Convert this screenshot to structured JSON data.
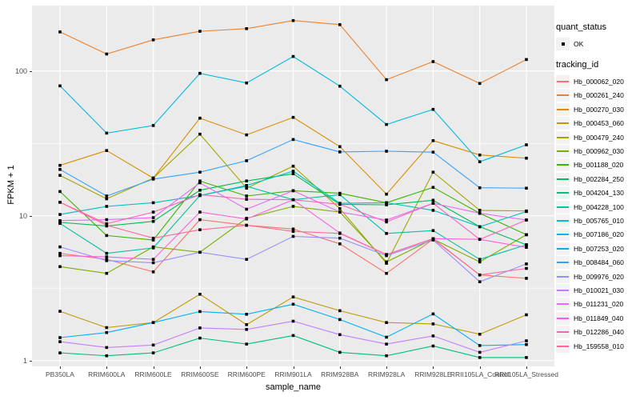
{
  "chart_data": {
    "type": "line",
    "title": "",
    "xlabel": "sample_name",
    "ylabel": "FPKM + 1",
    "y_scale": "log10",
    "ylim": [
      1,
      283
    ],
    "y_ticks": [
      1,
      10,
      100
    ],
    "y_minor_gridlines": [
      3.162,
      31.62
    ],
    "grid": "white gridlines on gray panel",
    "legend_position": "right",
    "point_marker": "small black square",
    "categories": [
      "PB350LA",
      "RRIM600LA",
      "RRIM600LE",
      "RRIM600SE",
      "RRIM600PE",
      "RRIM901LA",
      "RRIM928BA",
      "RRIM928LA",
      "RRIM928LE",
      "RRII105LA_Control",
      "RRII105LA_Stressed"
    ],
    "series": [
      {
        "name": "Hb_000062_020",
        "color": "#F8766D",
        "values": [
          5.5,
          5.0,
          4.1,
          9.4,
          8.6,
          8.1,
          6.4,
          4.0,
          6.9,
          3.9,
          3.7
        ]
      },
      {
        "name": "Hb_000261_240",
        "color": "#EA8331",
        "values": [
          186,
          131,
          164,
          188,
          196,
          223,
          209,
          87,
          116,
          82,
          120
        ]
      },
      {
        "name": "Hb_000270_030",
        "color": "#D89000",
        "values": [
          22.3,
          28.2,
          18.2,
          47.2,
          36.2,
          47.8,
          30.0,
          14.1,
          33.0,
          26.3,
          25.0
        ]
      },
      {
        "name": "Hb_000453_060",
        "color": "#C09B00",
        "values": [
          2.19,
          1.69,
          1.83,
          2.87,
          1.77,
          2.75,
          2.21,
          1.83,
          1.79,
          1.52,
          2.07
        ]
      },
      {
        "name": "Hb_000479_240",
        "color": "#A3A500",
        "values": [
          19.0,
          13.1,
          18.2,
          36.6,
          15.5,
          22.0,
          11.2,
          4.7,
          20.0,
          10.9,
          10.8
        ]
      },
      {
        "name": "Hb_000962_030",
        "color": "#7CAE00",
        "values": [
          4.45,
          4.0,
          6.1,
          5.6,
          9.6,
          11.6,
          10.6,
          4.8,
          6.9,
          4.8,
          7.4
        ]
      },
      {
        "name": "Hb_001188_020",
        "color": "#39B600",
        "values": [
          14.7,
          7.3,
          6.8,
          17.4,
          13.7,
          14.9,
          14.3,
          12.3,
          15.7,
          10.4,
          7.4
        ]
      },
      {
        "name": "Hb_002284_250",
        "color": "#00BB4E",
        "values": [
          9.0,
          8.5,
          9.15,
          15.0,
          17.4,
          19.5,
          12.0,
          11.9,
          12.8,
          8.4,
          6.3
        ]
      },
      {
        "name": "Hb_004204_130",
        "color": "#00BF7D",
        "values": [
          1.13,
          1.08,
          1.13,
          1.43,
          1.3,
          1.49,
          1.14,
          1.08,
          1.26,
          1.05,
          1.05
        ]
      },
      {
        "name": "Hb_004228_100",
        "color": "#00C1A3",
        "values": [
          8.85,
          5.5,
          6.0,
          13.8,
          16.0,
          12.9,
          14.0,
          7.55,
          7.9,
          5.0,
          6.3
        ]
      },
      {
        "name": "Hb_005765_010",
        "color": "#00BFC4",
        "values": [
          10.2,
          11.6,
          12.3,
          13.8,
          16.2,
          20.3,
          12.2,
          12.3,
          10.9,
          8.4,
          10.7
        ]
      },
      {
        "name": "Hb_007186_020",
        "color": "#00BAE0",
        "values": [
          78.9,
          37.2,
          42.0,
          96.2,
          82.6,
          125.9,
          78.5,
          42.7,
          54.3,
          23.6,
          30.9
        ]
      },
      {
        "name": "Hb_007253_020",
        "color": "#00B0F6",
        "values": [
          1.44,
          1.56,
          1.83,
          2.18,
          2.09,
          2.45,
          1.92,
          1.45,
          2.1,
          1.27,
          1.29
        ]
      },
      {
        "name": "Hb_008484_060",
        "color": "#35A2FF",
        "values": [
          20.9,
          13.7,
          17.9,
          20.0,
          24.0,
          33.6,
          27.6,
          27.9,
          27.5,
          15.6,
          15.5
        ]
      },
      {
        "name": "Hb_009976_020",
        "color": "#9590FF",
        "values": [
          6.1,
          4.9,
          4.74,
          5.6,
          5.0,
          7.2,
          7.0,
          5.3,
          6.8,
          3.5,
          4.65
        ]
      },
      {
        "name": "Hb_010021_030",
        "color": "#C77CFF",
        "values": [
          1.35,
          1.23,
          1.28,
          1.68,
          1.64,
          1.87,
          1.51,
          1.3,
          1.48,
          1.14,
          1.37
        ]
      },
      {
        "name": "Hb_011231_020",
        "color": "#E76BF3",
        "values": [
          9.25,
          9.4,
          9.7,
          16.9,
          11.1,
          14.9,
          10.6,
          9.35,
          12.2,
          10.4,
          9.35
        ]
      },
      {
        "name": "Hb_011849_040",
        "color": "#FA62DB",
        "values": [
          5.3,
          5.2,
          5.0,
          10.6,
          9.5,
          12.9,
          7.6,
          5.4,
          6.95,
          6.87,
          6.05
        ]
      },
      {
        "name": "Hb_012286_040",
        "color": "#FF62BC",
        "values": [
          12.4,
          8.8,
          10.6,
          14.0,
          13.0,
          12.9,
          12.0,
          9.07,
          12.2,
          6.87,
          9.35
        ]
      },
      {
        "name": "Hb_159558_010",
        "color": "#FF6A98",
        "values": [
          12.4,
          8.6,
          7.0,
          8.0,
          8.6,
          7.8,
          7.55,
          5.39,
          6.95,
          3.9,
          4.33
        ]
      }
    ]
  },
  "legend": {
    "quant_status": {
      "title": "quant_status",
      "entries": [
        {
          "label": "OK",
          "marker": "black-square"
        }
      ]
    },
    "tracking_id": {
      "title": "tracking_id"
    }
  },
  "colors": {
    "panel_bg": "#EBEBEB",
    "gridline": "#FFFFFF",
    "legend_key_bg": "#F2F2F2",
    "axis_text": "#4D4D4D",
    "point": "#000000"
  }
}
